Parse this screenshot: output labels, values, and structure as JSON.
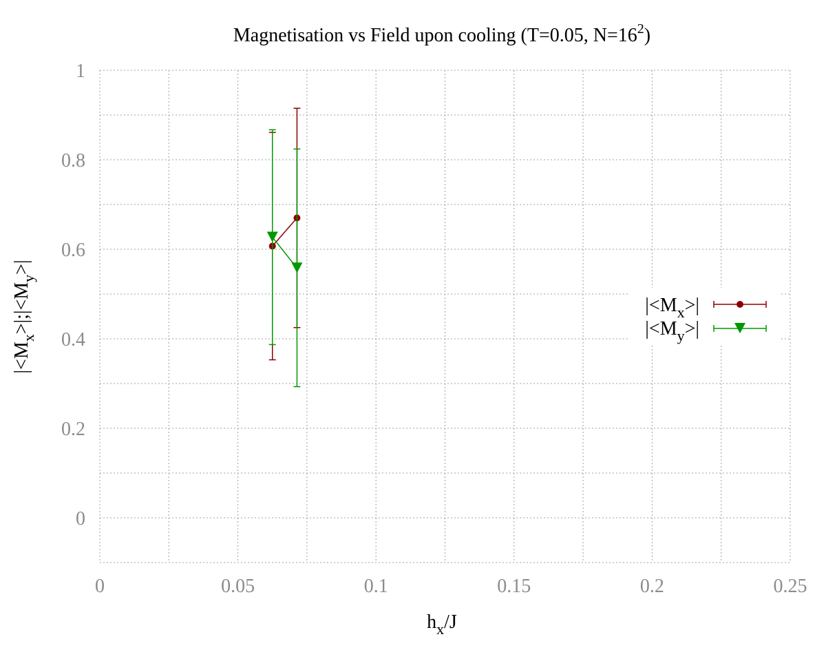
{
  "chart_data": {
    "type": "scatter",
    "title": {
      "main": "Magnetisation vs Field upon cooling (T=0.05, N=16",
      "sup": "2",
      "tail": ")"
    },
    "xlabel": {
      "base": "h",
      "sub": "x",
      "tail": "/J"
    },
    "ylabel": {
      "p1": "|<M",
      "sub1": "x",
      "p2": ">|;|<M",
      "sub2": "y",
      "p3": ">|"
    },
    "xlim": [
      0,
      0.25
    ],
    "ylim": [
      -0.1,
      1.0
    ],
    "xticks": [
      0,
      0.05,
      0.1,
      0.15,
      0.2,
      0.25
    ],
    "xtick_labels": [
      "0",
      "0.05",
      "0.1",
      "0.15",
      "0.2",
      "0.25"
    ],
    "yticks": [
      0,
      0.2,
      0.4,
      0.6,
      0.8,
      1
    ],
    "ytick_labels": [
      "0",
      "0.2",
      "0.4",
      "0.6",
      "0.8",
      "1"
    ],
    "grid": true,
    "grid_x_step": 0.025,
    "grid_y_step": 0.1,
    "legend_position": "right",
    "series": [
      {
        "name": {
          "p1": "|<M",
          "sub": "x",
          "p2": ">|"
        },
        "color": "#8b0000",
        "marker": "circle",
        "points": [
          {
            "x": 0.0625,
            "y": 0.607,
            "yerr_low": 0.353,
            "yerr_high": 0.861
          },
          {
            "x": 0.0714,
            "y": 0.67,
            "yerr_low": 0.425,
            "yerr_high": 0.915
          }
        ]
      },
      {
        "name": {
          "p1": "|<M",
          "sub": "y",
          "p2": ">|"
        },
        "color": "#009900",
        "marker": "triangle-down",
        "points": [
          {
            "x": 0.0625,
            "y": 0.627,
            "yerr_low": 0.387,
            "yerr_high": 0.867
          },
          {
            "x": 0.0714,
            "y": 0.558,
            "yerr_low": 0.293,
            "yerr_high": 0.824
          }
        ]
      }
    ]
  }
}
